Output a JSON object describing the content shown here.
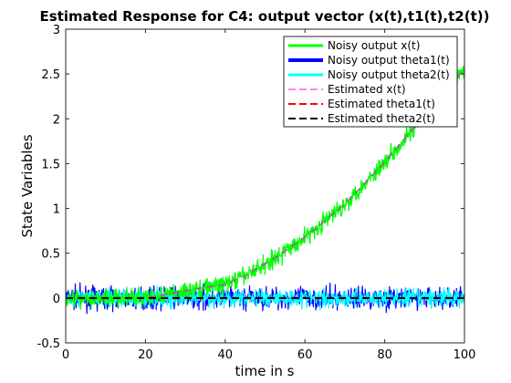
{
  "chart_data": {
    "type": "line",
    "title": "Estimated Response for C4: output vector (x(t),t1(t),t2(t))",
    "xlabel": "time in s",
    "ylabel": "State Variables",
    "xlim": [
      0,
      100
    ],
    "ylim": [
      -0.5,
      3
    ],
    "xticks": [
      0,
      20,
      40,
      60,
      80,
      100
    ],
    "yticks": [
      -0.5,
      0,
      0.5,
      1,
      1.5,
      2,
      2.5,
      3
    ],
    "xtick_labels": [
      "0",
      "20",
      "40",
      "60",
      "80",
      "100"
    ],
    "ytick_labels": [
      "-0.5",
      "0",
      "0.5",
      "1",
      "1.5",
      "2",
      "2.5",
      "3"
    ],
    "grid": false,
    "legend_position": "top-right",
    "series": [
      {
        "name": "Noisy output x(t)",
        "color": "#00ff00",
        "style": "solid",
        "noise_amplitude": 0.12,
        "x": [
          0,
          10,
          20,
          30,
          35,
          40,
          45,
          50,
          55,
          60,
          65,
          70,
          75,
          80,
          85,
          90,
          95,
          100
        ],
        "y": [
          0,
          0,
          0,
          0.08,
          0.12,
          0.15,
          0.25,
          0.38,
          0.52,
          0.68,
          0.86,
          1.05,
          1.28,
          1.52,
          1.78,
          2.03,
          2.3,
          2.55
        ]
      },
      {
        "name": "Noisy output theta1(t)",
        "color": "#0000ff",
        "style": "solid",
        "noise_amplitude": 0.14,
        "x": [
          0,
          20,
          40,
          60,
          80,
          100
        ],
        "y": [
          0,
          0,
          0,
          0,
          0,
          0
        ]
      },
      {
        "name": "Noisy output theta2(t)",
        "color": "#00ffff",
        "style": "solid",
        "noise_amplitude": 0.12,
        "x": [
          0,
          20,
          40,
          60,
          80,
          100
        ],
        "y": [
          0,
          0,
          0,
          0,
          0,
          0
        ]
      },
      {
        "name": "Estimated x(t)",
        "color": "#ff00ff",
        "style": "dashed",
        "x": [
          0,
          10,
          20,
          30,
          35,
          40,
          45,
          50,
          55,
          60,
          65,
          70,
          75,
          80,
          85,
          90,
          95,
          100
        ],
        "y": [
          0,
          0,
          0,
          0.08,
          0.12,
          0.15,
          0.25,
          0.38,
          0.52,
          0.68,
          0.86,
          1.05,
          1.28,
          1.52,
          1.78,
          2.03,
          2.3,
          2.55
        ]
      },
      {
        "name": "Estimated theta1(t)",
        "color": "#ff0000",
        "style": "dashed",
        "x": [
          0,
          100
        ],
        "y": [
          0,
          0
        ]
      },
      {
        "name": "Estimated theta2(t)",
        "color": "#000000",
        "style": "dashed",
        "x": [
          0,
          100
        ],
        "y": [
          0,
          0
        ]
      }
    ]
  }
}
